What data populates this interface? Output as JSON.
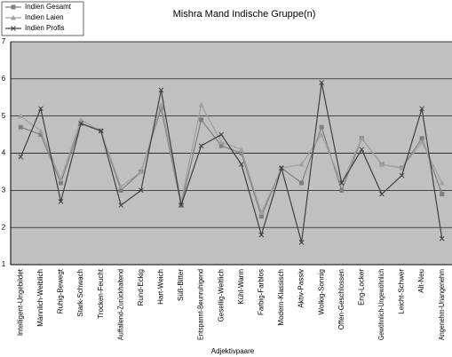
{
  "chart_data": {
    "type": "line",
    "title": "Mishra Mand Indische Gruppe(n)",
    "x_label": "Adjektivpaare",
    "categories": [
      "Intelligent-Ungebildet",
      "Männlich-Weiblich",
      "Ruhig-Bewegt",
      "Stark-Schwach",
      "Trocken-Feucht",
      "Auffallend-Zurückhaltend",
      "Rund-Eckig",
      "Hart-Weich",
      "Süß-Bitter",
      "Entspannt-Beunruhigend",
      "Gesellig-Weltlich",
      "Kühl-Warm",
      "Farbig-Farblos",
      "Modern-Klassisch",
      "Aktiv-Passiv",
      "Wolkig-Sonnig",
      "Offen-Geschlossen",
      "Eng-Locker",
      "Gewöhnlich-Ungewöhnlich",
      "Leicht-Schwer",
      "Alt-Neu",
      "Angenehm-Unangenehm"
    ],
    "series": [
      {
        "name": "Indien Gesamt",
        "color": "#808080",
        "marker": "square",
        "values": [
          4.7,
          4.5,
          3.2,
          4.8,
          4.6,
          3.0,
          3.5,
          5.2,
          2.6,
          4.9,
          4.2,
          4.0,
          2.3,
          3.6,
          3.2,
          4.7,
          3.0,
          4.4,
          3.7,
          3.6,
          4.4,
          2.9
        ]
      },
      {
        "name": "Indien Laien",
        "color": "#a0a0a0",
        "marker": "triangle",
        "values": [
          5.0,
          4.6,
          3.3,
          4.9,
          4.6,
          3.1,
          3.5,
          5.3,
          2.7,
          5.3,
          4.3,
          4.1,
          2.4,
          3.6,
          3.7,
          4.5,
          3.2,
          4.4,
          3.7,
          3.6,
          4.3,
          3.2
        ]
      },
      {
        "name": "Indien Profis",
        "color": "#404040",
        "marker": "x",
        "values": [
          3.9,
          5.2,
          2.7,
          4.8,
          4.6,
          2.6,
          3.0,
          5.7,
          2.6,
          4.2,
          4.5,
          3.7,
          1.8,
          3.6,
          1.6,
          5.9,
          3.2,
          4.1,
          2.9,
          3.4,
          5.2,
          1.7
        ]
      }
    ],
    "ylim": [
      1,
      7
    ],
    "yticks": [
      1,
      2,
      3,
      4,
      5,
      6,
      7
    ],
    "grid": true,
    "legend": "top-left"
  }
}
